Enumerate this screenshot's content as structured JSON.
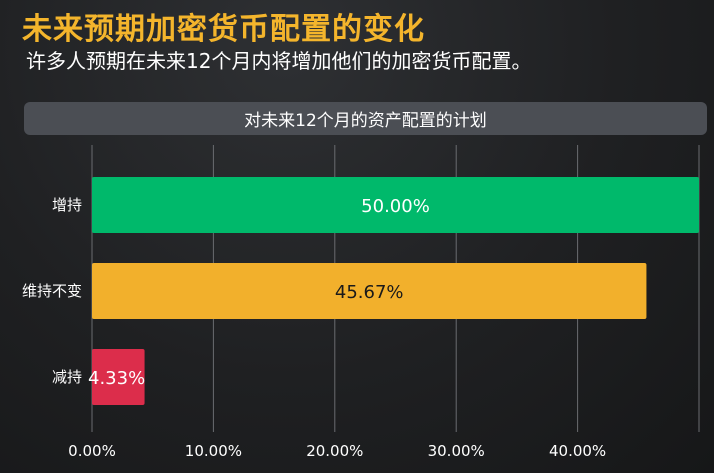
{
  "header": {
    "title": "未来预期加密货币配置的变化",
    "subtitle": "许多人预期在未来12个月内将增加他们的加密货币配置。"
  },
  "chart_data": {
    "type": "bar",
    "orientation": "horizontal",
    "title": "对未来12个月的资产配置的计划",
    "categories": [
      "增持",
      "维持不变",
      "减持"
    ],
    "values": [
      50.0,
      45.67,
      4.33
    ],
    "data_labels": [
      "50.00%",
      "45.67%",
      "4.33%"
    ],
    "colors": [
      "#00b96b",
      "#f2b02c",
      "#dc2d4b"
    ],
    "label_colors": [
      "#ffffff",
      "#1a1a1a",
      "#ffffff"
    ],
    "xlim": [
      0,
      50
    ],
    "xticks": [
      0,
      10,
      20,
      30,
      40
    ],
    "xtick_labels": [
      "0.00%",
      "10.00%",
      "20.00%",
      "30.00%",
      "40.00%"
    ],
    "grid": "vertical",
    "legend": "none"
  }
}
